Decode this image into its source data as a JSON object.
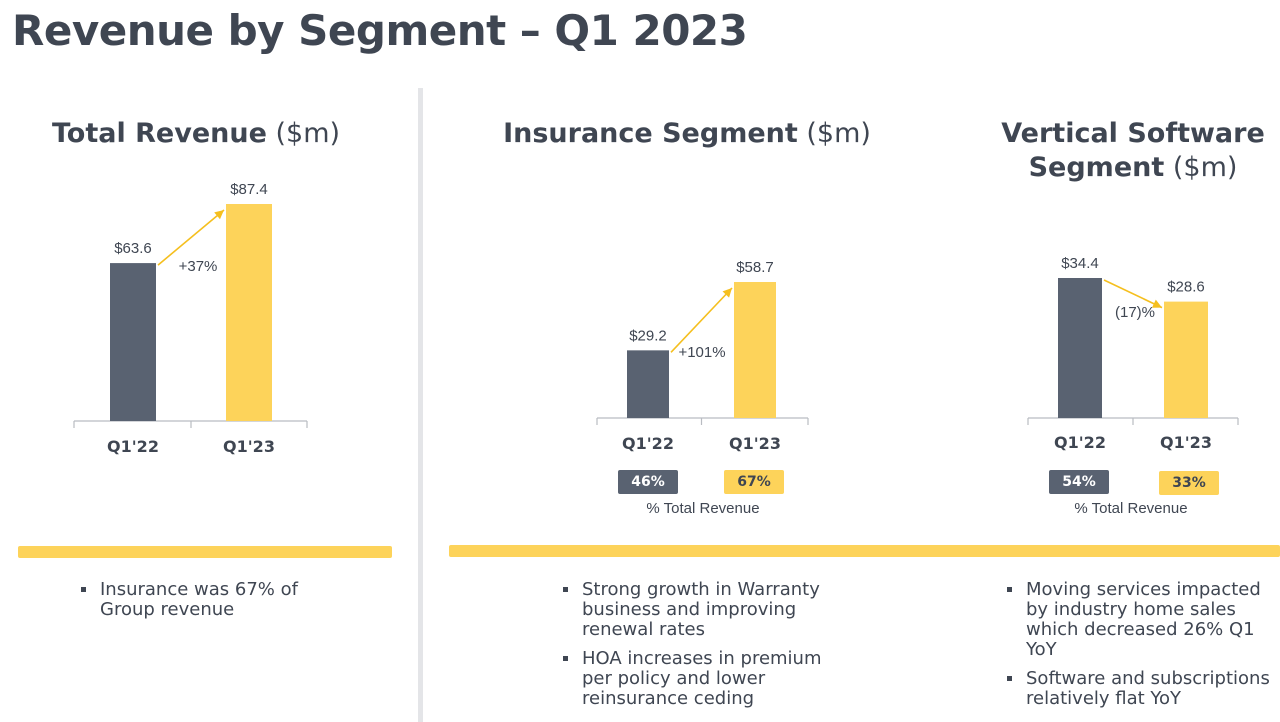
{
  "page": {
    "title": "Revenue by Segment – Q1 2023"
  },
  "chart_data": [
    {
      "type": "bar",
      "title_bold": "Total Revenue",
      "title_unit": "($m)",
      "categories": [
        "Q1'22",
        "Q1'23"
      ],
      "values": [
        63.6,
        87.4
      ],
      "value_labels": [
        "$63.6",
        "$87.4"
      ],
      "change_label": "+37%",
      "colors": [
        "#596271",
        "#fdd35a"
      ]
    },
    {
      "type": "bar",
      "title_bold": "Insurance Segment",
      "title_unit": "($m)",
      "categories": [
        "Q1'22",
        "Q1'23"
      ],
      "values": [
        29.2,
        58.7
      ],
      "value_labels": [
        "$29.2",
        "$58.7"
      ],
      "change_label": "+101%",
      "colors": [
        "#596271",
        "#fdd35a"
      ],
      "share_of_total": [
        "46%",
        "67%"
      ],
      "share_caption": "% Total Revenue"
    },
    {
      "type": "bar",
      "title_bold_line1": "Vertical Software",
      "title_bold_line2": "Segment",
      "title_unit": "($m)",
      "categories": [
        "Q1'22",
        "Q1'23"
      ],
      "values": [
        34.4,
        28.6
      ],
      "value_labels": [
        "$34.4",
        "$28.6"
      ],
      "change_label": "(17)%",
      "colors": [
        "#596271",
        "#fdd35a"
      ],
      "share_of_total": [
        "54%",
        "33%"
      ],
      "share_caption": "% Total Revenue"
    }
  ],
  "bullets": {
    "total": [
      "Insurance was 67% of Group revenue"
    ],
    "insurance": [
      "Strong growth in Warranty business and improving renewal rates",
      "HOA increases in premium per policy and lower reinsurance ceding"
    ],
    "software": [
      "Moving services impacted by industry home sales which decreased 26% Q1 YoY",
      "Software and subscriptions relatively flat YoY"
    ]
  },
  "colors": {
    "dark_bar": "#596271",
    "accent_yellow": "#fdd35a",
    "text": "#3f4652"
  }
}
